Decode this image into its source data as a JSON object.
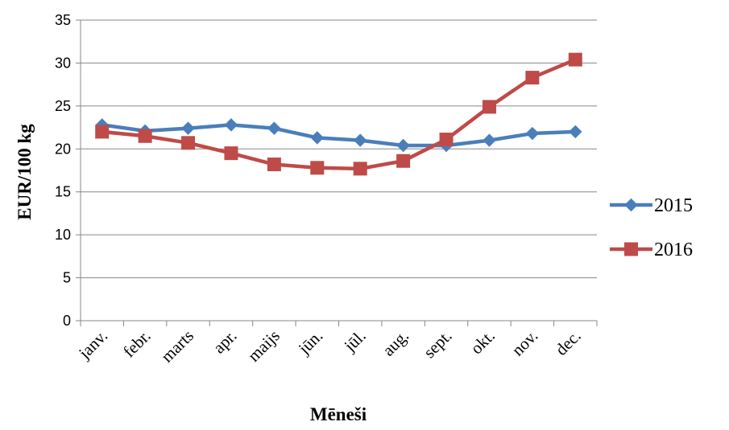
{
  "chart_data": {
    "type": "line",
    "categories": [
      "janv.",
      "febr.",
      "marts",
      "apr.",
      "maijs",
      "jūn.",
      "jūl.",
      "aug.",
      "sept.",
      "okt.",
      "nov.",
      "dec."
    ],
    "series": [
      {
        "name": "2015",
        "color": "#4a7ebb",
        "marker": "diamond",
        "values": [
          22.8,
          22.1,
          22.4,
          22.8,
          22.4,
          21.3,
          21.0,
          20.4,
          20.4,
          21.0,
          21.8,
          22.0
        ]
      },
      {
        "name": "2016",
        "color": "#be4b48",
        "marker": "square",
        "values": [
          22.0,
          21.5,
          20.7,
          19.5,
          18.2,
          17.8,
          17.7,
          18.6,
          21.1,
          24.9,
          28.3,
          30.4
        ]
      }
    ],
    "title": "",
    "xlabel": "Mēneši",
    "ylabel": "EUR/100 kg",
    "ylim": [
      0,
      35
    ],
    "yticks": [
      0,
      5,
      10,
      15,
      20,
      25,
      30,
      35
    ],
    "grid": true,
    "legend": "right"
  }
}
